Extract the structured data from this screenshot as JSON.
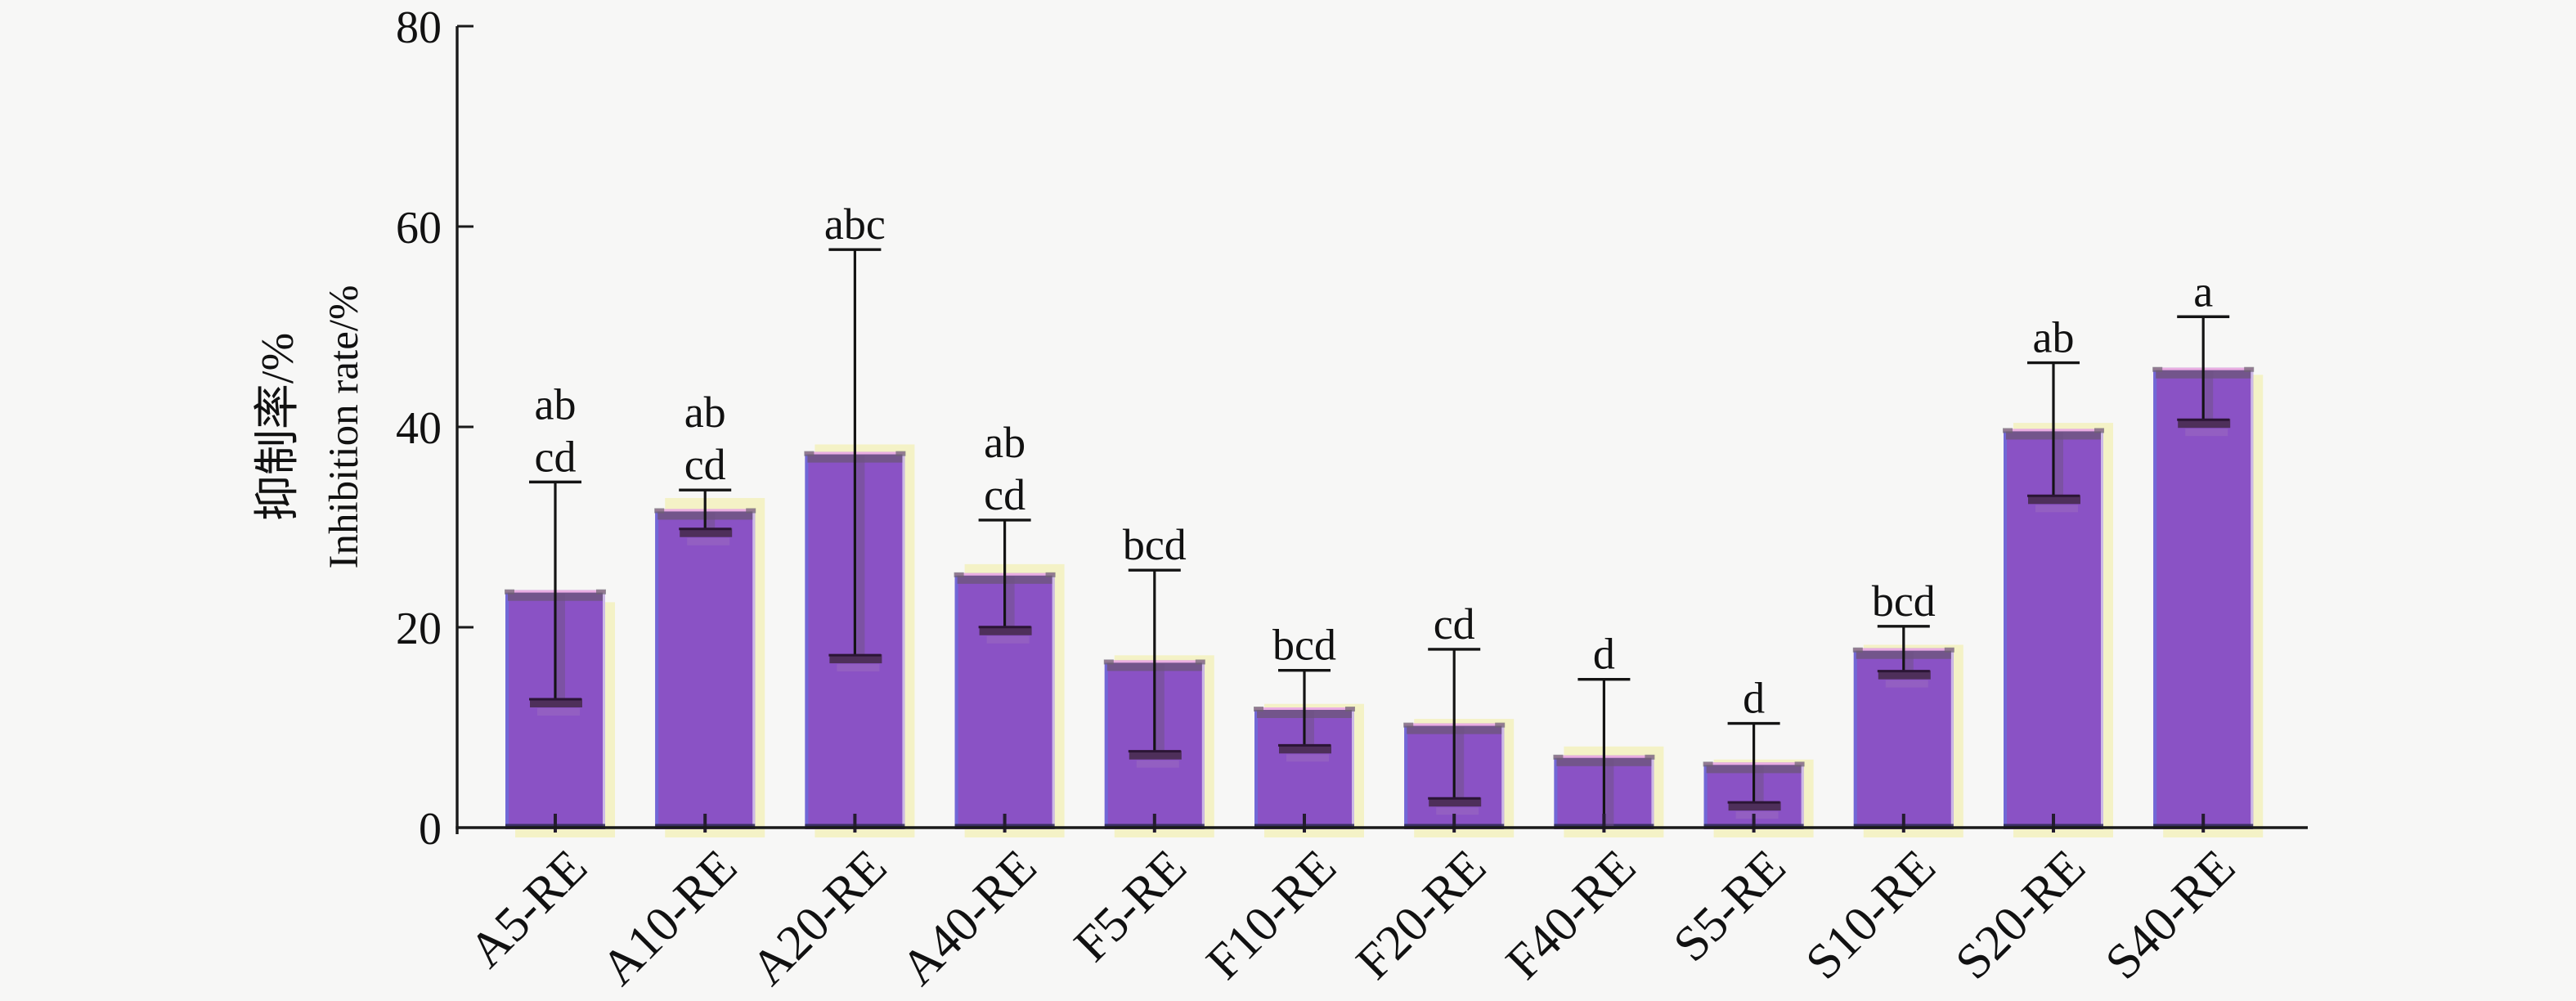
{
  "chart_data": {
    "type": "bar",
    "title": "",
    "ylabel_cn": "抑制率/%",
    "ylabel_en": "Inhibition rate/%",
    "categories": [
      "A5-RE",
      "A10-RE",
      "A20-RE",
      "A40-RE",
      "F5-RE",
      "F10-RE",
      "F20-RE",
      "F40-RE",
      "S5-RE",
      "S10-RE",
      "S20-RE",
      "S40-RE"
    ],
    "values": [
      23.7,
      31.8,
      37.5,
      25.4,
      16.7,
      12.0,
      10.4,
      7.2,
      6.5,
      17.9,
      39.8,
      45.9
    ],
    "errors": [
      10.8,
      1.9,
      20.2,
      5.3,
      9.0,
      3.7,
      7.4,
      7.6,
      3.9,
      2.2,
      6.6,
      5.1
    ],
    "sig_letters": [
      "ab|cd",
      "ab|cd",
      "abc",
      "ab|cd",
      "bcd",
      "bcd",
      "cd",
      "d",
      "d",
      "bcd",
      "ab",
      "a"
    ],
    "shadow_values": [
      22.5,
      32.9,
      38.25,
      26.3,
      17.2,
      12.35,
      10.85,
      8.1,
      6.8,
      18.25,
      40.4,
      45.2
    ],
    "ylim": [
      0,
      80
    ],
    "yticks": [
      "0",
      "20",
      "40",
      "60",
      "80"
    ],
    "grid": false,
    "legend": null,
    "xlabel": "",
    "colors": {
      "bar": "#8a52c5",
      "bar_edge_left": "#7168d6",
      "bar_edge_top": "#eaaee2",
      "bar_edge_right": "#cdb9e6",
      "bar_edge_bottom": "#2b2850",
      "shadow_bar": "#f4f2c6",
      "error": "#141414",
      "cap_dark": "#4e2f5a",
      "cap_light": "#a277be",
      "top_band": "#6f5680",
      "whisker_stripe": "#6d5184",
      "corner_nub": "#6e6270",
      "axis": "#1a1a1a",
      "background": "#f7f7f6"
    }
  }
}
